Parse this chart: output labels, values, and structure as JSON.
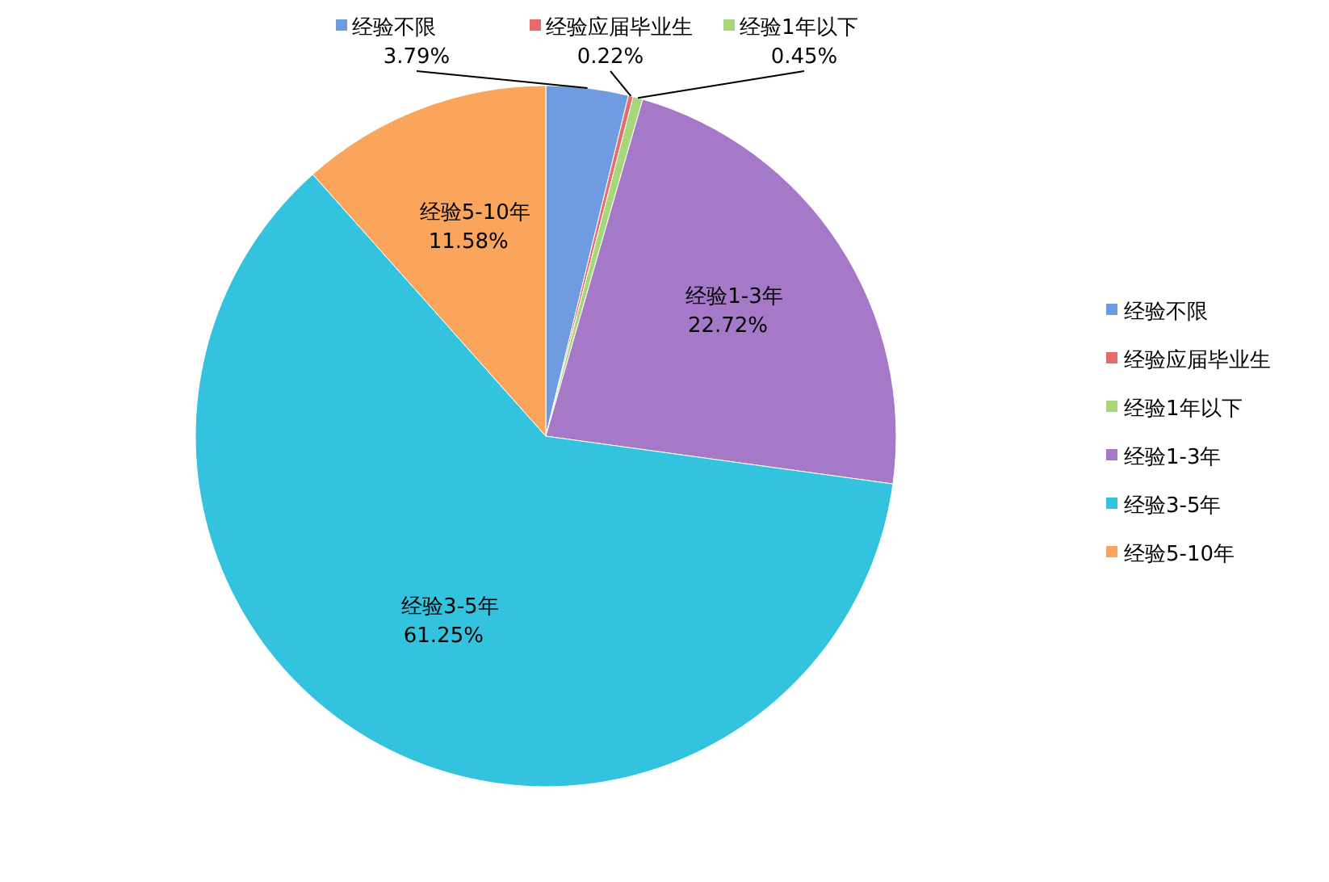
{
  "chart_data": {
    "type": "pie",
    "categories": [
      "经验不限",
      "经验应届毕业生",
      "经验1年以下",
      "经验1-3年",
      "经验3-5年",
      "经验5-10年"
    ],
    "values": [
      3.79,
      0.22,
      0.45,
      22.72,
      61.25,
      11.58
    ],
    "colors": [
      "#6f9be0",
      "#e86a6a",
      "#a6d87a",
      "#a578c8",
      "#33c3df",
      "#fba45c"
    ],
    "value_labels": [
      "3.79%",
      "0.22%",
      "0.45%",
      "22.72%",
      "61.25%",
      "11.58%"
    ],
    "legend": "right"
  }
}
